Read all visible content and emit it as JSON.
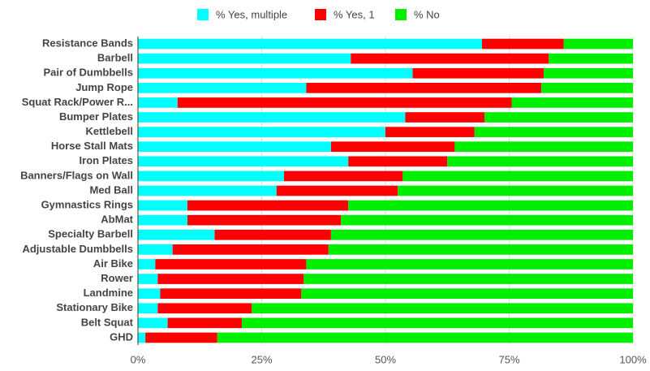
{
  "chart_data": {
    "type": "bar",
    "orientation": "horizontal",
    "stacked": true,
    "categories": [
      "Resistance Bands",
      "Barbell",
      "Pair of Dumbbells",
      "Jump  Rope",
      "Squat Rack/Power R...",
      "Bumper Plates",
      "Kettlebell",
      "Horse Stall Mats",
      "Iron Plates",
      "Banners/Flags on Wall",
      "Med Ball",
      "Gymnastics Rings",
      "AbMat",
      "Specialty Barbell",
      "Adjustable Dumbbells",
      "Air Bike",
      "Rower",
      "Landmine",
      "Stationary Bike",
      "Belt Squat",
      "GHD"
    ],
    "series": [
      {
        "name": "% Yes, multiple",
        "color": "#00ffff",
        "values": [
          69.5,
          43,
          55.5,
          34,
          8,
          54,
          50,
          39,
          42.5,
          29.5,
          28,
          10,
          10,
          15.5,
          7,
          3.5,
          4,
          4.5,
          4,
          6,
          1.5
        ]
      },
      {
        "name": "% Yes, 1",
        "color": "#ff0000",
        "values": [
          16.5,
          40,
          26.5,
          47.5,
          67.5,
          16,
          18,
          25,
          20,
          24,
          24.5,
          32.5,
          31,
          23.5,
          31.5,
          30.5,
          29.5,
          28.5,
          19,
          15,
          14.5
        ]
      },
      {
        "name": "% No",
        "color": "#00ee00",
        "values": [
          14,
          17,
          18,
          18.5,
          24.5,
          30,
          32,
          36,
          37.5,
          46.5,
          47.5,
          57.5,
          59,
          61,
          61.5,
          66,
          66.5,
          67,
          77,
          79,
          84
        ]
      }
    ],
    "xlim": [
      0,
      100
    ],
    "xticks": [
      "0%",
      "25%",
      "50%",
      "75%",
      "100%"
    ],
    "xtick_values": [
      0,
      25,
      50,
      75,
      100
    ],
    "legend_position": "top",
    "grid": true,
    "title": "",
    "xlabel": "",
    "ylabel": ""
  }
}
